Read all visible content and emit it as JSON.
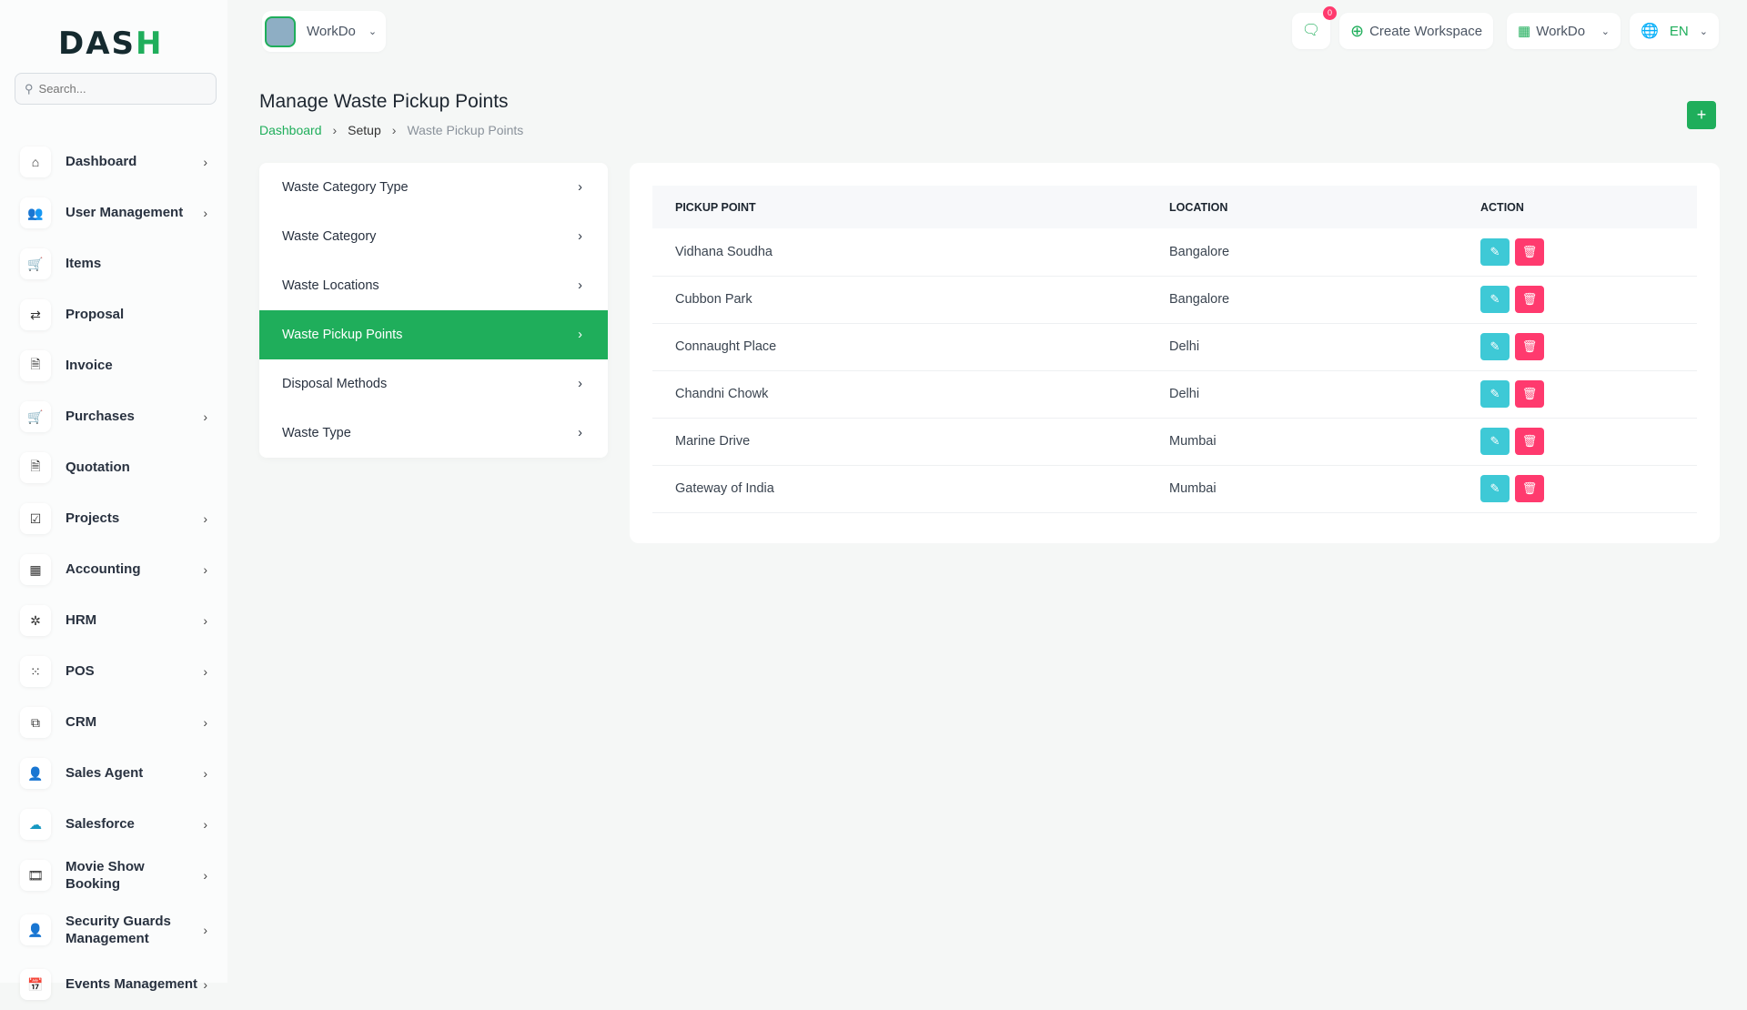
{
  "brand": {
    "logo_text": "DASH",
    "accent": "#1fae5b"
  },
  "search": {
    "placeholder": "Search..."
  },
  "sidebar": {
    "items": [
      {
        "label": "Dashboard",
        "icon": "home-icon",
        "chevron": true
      },
      {
        "label": "User Management",
        "icon": "users-icon",
        "chevron": true
      },
      {
        "label": "Items",
        "icon": "cart-icon",
        "chevron": false
      },
      {
        "label": "Proposal",
        "icon": "proposal-icon",
        "chevron": false
      },
      {
        "label": "Invoice",
        "icon": "invoice-icon",
        "chevron": false
      },
      {
        "label": "Purchases",
        "icon": "cart-icon",
        "chevron": true
      },
      {
        "label": "Quotation",
        "icon": "quotation-icon",
        "chevron": false
      },
      {
        "label": "Projects",
        "icon": "check-square-icon",
        "chevron": true
      },
      {
        "label": "Accounting",
        "icon": "grid-icon",
        "chevron": true
      },
      {
        "label": "HRM",
        "icon": "hrm-icon",
        "chevron": true
      },
      {
        "label": "POS",
        "icon": "dots-grid-icon",
        "chevron": true
      },
      {
        "label": "CRM",
        "icon": "crm-icon",
        "chevron": true
      },
      {
        "label": "Sales Agent",
        "icon": "user-check-icon",
        "chevron": true
      },
      {
        "label": "Salesforce",
        "icon": "salesforce-icon",
        "chevron": true
      },
      {
        "label": "Movie Show Booking",
        "icon": "film-icon",
        "chevron": true
      },
      {
        "label": "Security Guards Management",
        "icon": "user-check-icon",
        "chevron": true
      },
      {
        "label": "Events Management",
        "icon": "calendar-icon",
        "chevron": true
      }
    ]
  },
  "topbar": {
    "workspace": "WorkDo",
    "notifications": "0",
    "create_workspace": "Create Workspace",
    "workdo": "WorkDo",
    "language": "EN"
  },
  "page": {
    "title": "Manage Waste Pickup Points",
    "breadcrumb": [
      "Dashboard",
      "Setup",
      "Waste Pickup Points"
    ]
  },
  "menu": {
    "items": [
      "Waste Category Type",
      "Waste Category",
      "Waste Locations",
      "Waste Pickup Points",
      "Disposal Methods",
      "Waste Type"
    ],
    "active": 3
  },
  "table": {
    "headers": [
      "PICKUP POINT",
      "LOCATION",
      "ACTION"
    ],
    "rows": [
      [
        "Vidhana Soudha",
        "Bangalore"
      ],
      [
        "Cubbon Park",
        "Bangalore"
      ],
      [
        "Connaught Place",
        "Delhi"
      ],
      [
        "Chandni Chowk",
        "Delhi"
      ],
      [
        "Marine Drive",
        "Mumbai"
      ],
      [
        "Gateway of India",
        "Mumbai"
      ]
    ]
  }
}
